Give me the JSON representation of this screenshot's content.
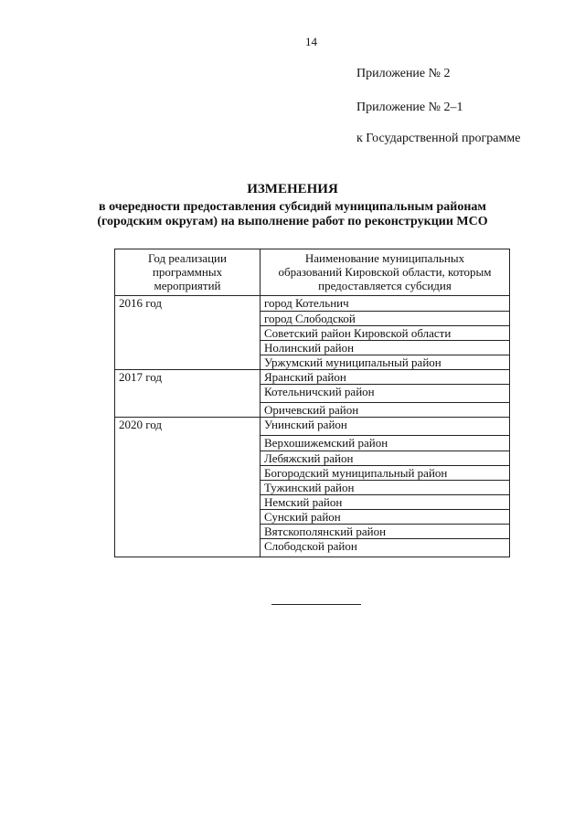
{
  "page_number": "14",
  "header": {
    "line1": "Приложение № 2",
    "line2": "Приложение № 2–1",
    "line3": "к Государственной программе"
  },
  "title": {
    "heading": "ИЗМЕНЕНИЯ",
    "line1": "в очередности предоставления субсидий муниципальным районам",
    "line2": "(городским округам) на выполнение работ по реконструкции МСО"
  },
  "table": {
    "columns": [
      [
        "Год реализации",
        "программных",
        "мероприятий"
      ],
      [
        "Наименование муниципальных",
        "образований Кировской области, которым",
        "предоставляется субсидия"
      ]
    ],
    "groups": [
      {
        "year": "2016 год",
        "items": [
          "город Котельнич",
          "город Слободской",
          "Советский район Кировской области",
          "Нолинский район",
          "Уржумский муниципальный район"
        ]
      },
      {
        "year": "2017 год",
        "items": [
          "Яранский район",
          "Котельничский район",
          "Оричевский район"
        ]
      },
      {
        "year": "2020 год",
        "items": [
          "Унинский район",
          "Верхошижемский район",
          "Лебяжский район",
          "Богородский муниципальный район",
          "Тужинский район",
          "Немский район",
          "Сунский район",
          "Вятскополянский район",
          "Слободской район"
        ]
      }
    ]
  }
}
